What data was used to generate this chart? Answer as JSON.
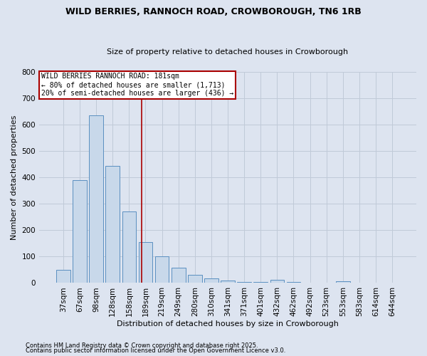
{
  "title": "WILD BERRIES, RANNOCH ROAD, CROWBOROUGH, TN6 1RB",
  "subtitle": "Size of property relative to detached houses in Crowborough",
  "xlabel": "Distribution of detached houses by size in Crowborough",
  "ylabel": "Number of detached properties",
  "bar_color": "#c8d8ea",
  "bar_edge_color": "#5a8fc0",
  "categories": [
    "37sqm",
    "67sqm",
    "98sqm",
    "128sqm",
    "158sqm",
    "189sqm",
    "219sqm",
    "249sqm",
    "280sqm",
    "310sqm",
    "341sqm",
    "371sqm",
    "401sqm",
    "432sqm",
    "462sqm",
    "492sqm",
    "523sqm",
    "553sqm",
    "583sqm",
    "614sqm",
    "644sqm"
  ],
  "values": [
    50,
    390,
    635,
    445,
    270,
    155,
    100,
    57,
    30,
    18,
    8,
    5,
    5,
    12,
    5,
    0,
    0,
    7,
    0,
    0,
    0
  ],
  "ylim": [
    0,
    800
  ],
  "yticks": [
    0,
    100,
    200,
    300,
    400,
    500,
    600,
    700,
    800
  ],
  "marker_label": "WILD BERRIES RANNOCH ROAD: 181sqm",
  "marker_line1": "← 80% of detached houses are smaller (1,713)",
  "marker_line2": "20% of semi-detached houses are larger (436) →",
  "marker_color": "#aa0000",
  "grid_color": "#c0cad8",
  "bg_color": "#dde4f0",
  "title_fontsize": 9,
  "subtitle_fontsize": 8,
  "footnote1": "Contains HM Land Registry data © Crown copyright and database right 2025.",
  "footnote2": "Contains public sector information licensed under the Open Government Licence v3.0."
}
